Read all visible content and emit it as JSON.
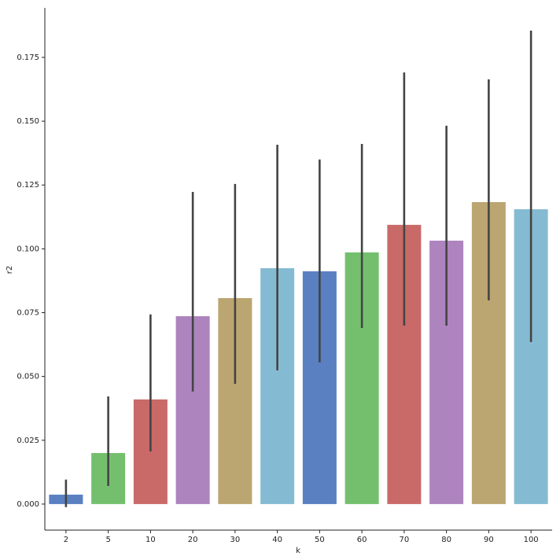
{
  "chart_data": {
    "type": "bar",
    "xlabel": "k",
    "ylabel": "r2",
    "categories": [
      "2",
      "5",
      "10",
      "20",
      "30",
      "40",
      "50",
      "60",
      "70",
      "80",
      "90",
      "100"
    ],
    "values": [
      0.0037,
      0.02,
      0.041,
      0.0736,
      0.0807,
      0.0924,
      0.0912,
      0.0986,
      0.1094,
      0.1032,
      0.1183,
      0.1155
    ],
    "ci_low": [
      -0.0012,
      0.0071,
      0.0206,
      0.0441,
      0.0471,
      0.0524,
      0.0555,
      0.069,
      0.0699,
      0.0699,
      0.0798,
      0.0635
    ],
    "ci_high": [
      0.0096,
      0.0422,
      0.0743,
      0.1223,
      0.1254,
      0.1408,
      0.135,
      0.1411,
      0.1691,
      0.1482,
      0.1664,
      0.1855
    ],
    "colors": [
      "#5a80c2",
      "#74bf6e",
      "#c96a69",
      "#ad84be",
      "#bba571",
      "#85bbd2",
      "#5a80c2",
      "#74bf6e",
      "#c96a69",
      "#ad84be",
      "#bba571",
      "#85bbd2"
    ],
    "error_color": "#444444",
    "ylim": [
      -0.0102,
      0.1944
    ],
    "yticks": [
      {
        "value": 0,
        "label": "0.000"
      },
      {
        "value": 0.025,
        "label": "0.025"
      },
      {
        "value": 0.05,
        "label": "0.050"
      },
      {
        "value": 0.075,
        "label": "0.075"
      },
      {
        "value": 0.1,
        "label": "0.100"
      },
      {
        "value": 0.125,
        "label": "0.125"
      },
      {
        "value": 0.15,
        "label": "0.150"
      },
      {
        "value": 0.175,
        "label": "0.175"
      }
    ]
  }
}
